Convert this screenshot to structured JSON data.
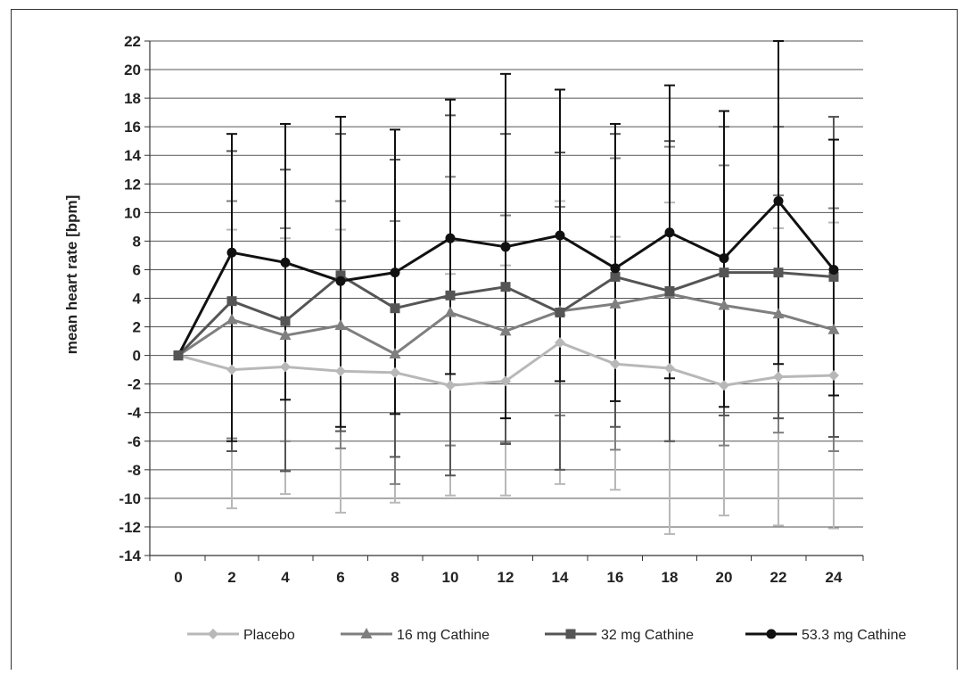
{
  "chart_data": {
    "type": "line",
    "xlabel": "",
    "ylabel": "mean heart rate [bpm]",
    "ylim": [
      -14,
      22
    ],
    "yticks": [
      22,
      20,
      18,
      16,
      14,
      12,
      10,
      8,
      6,
      4,
      2,
      0,
      -2,
      -4,
      -6,
      -8,
      -10,
      -12,
      -14
    ],
    "x": [
      0,
      2,
      4,
      6,
      8,
      10,
      12,
      14,
      16,
      18,
      20,
      22,
      24
    ],
    "grid": "horizontal",
    "legend_position": "bottom",
    "series": [
      {
        "name": "Placebo",
        "color": "#b8b8b8",
        "marker": "diamond",
        "values": [
          0,
          -1.0,
          -0.8,
          -1.1,
          -1.2,
          -2.1,
          -1.8,
          0.9,
          -0.6,
          -0.9,
          -2.1,
          -1.5,
          -1.4
        ],
        "err_low": [
          0,
          -10.7,
          -9.7,
          -11.0,
          -10.3,
          -9.8,
          -9.8,
          -9.0,
          -9.4,
          -12.5,
          -11.2,
          -11.9,
          -12.1
        ],
        "err_high": [
          0,
          8.8,
          8.2,
          8.8,
          8.0,
          5.7,
          6.3,
          10.8,
          8.3,
          10.7,
          7.0,
          8.9,
          9.3
        ]
      },
      {
        "name": "16 mg Cathine",
        "color": "#7f7f7f",
        "marker": "triangle",
        "values": [
          0,
          2.5,
          1.4,
          2.1,
          0.1,
          3.0,
          1.7,
          3.1,
          3.6,
          4.3,
          3.5,
          2.9,
          1.8
        ],
        "err_low": [
          0,
          -5.8,
          -6.0,
          -6.5,
          -9.0,
          -6.3,
          -6.1,
          -4.2,
          -6.6,
          -6.0,
          -6.3,
          -5.4,
          -6.7
        ],
        "err_high": [
          0,
          10.8,
          8.9,
          10.8,
          9.4,
          12.5,
          9.8,
          10.4,
          13.8,
          14.6,
          13.3,
          11.2,
          10.3
        ]
      },
      {
        "name": "32 mg Cathine",
        "color": "#555555",
        "marker": "square",
        "values": [
          0,
          3.8,
          2.4,
          5.6,
          3.3,
          4.2,
          4.8,
          3.0,
          5.5,
          4.5,
          5.8,
          5.8,
          5.5
        ],
        "err_low": [
          0,
          -6.7,
          -8.1,
          -5.3,
          -7.1,
          -8.4,
          -6.2,
          -8.0,
          -5.0,
          -6.0,
          -4.2,
          -4.4,
          -5.7
        ],
        "err_high": [
          0,
          14.3,
          13.0,
          15.5,
          13.7,
          16.8,
          15.5,
          14.2,
          15.5,
          15.0,
          16.0,
          16.0,
          16.7
        ]
      },
      {
        "name": "53.3 mg Cathine",
        "color": "#111111",
        "marker": "circle",
        "values": [
          0,
          7.2,
          6.5,
          5.2,
          5.8,
          8.2,
          7.6,
          8.4,
          6.1,
          8.6,
          6.8,
          10.8,
          6.0
        ],
        "err_low": [
          0,
          -6.0,
          -3.1,
          -5.0,
          -4.1,
          -1.3,
          -4.4,
          -1.8,
          -3.2,
          -1.6,
          -3.6,
          -0.6,
          -2.8
        ],
        "err_high": [
          0,
          15.5,
          16.2,
          16.7,
          15.8,
          17.9,
          19.7,
          18.6,
          16.2,
          18.9,
          17.1,
          22.0,
          15.1
        ]
      }
    ]
  }
}
